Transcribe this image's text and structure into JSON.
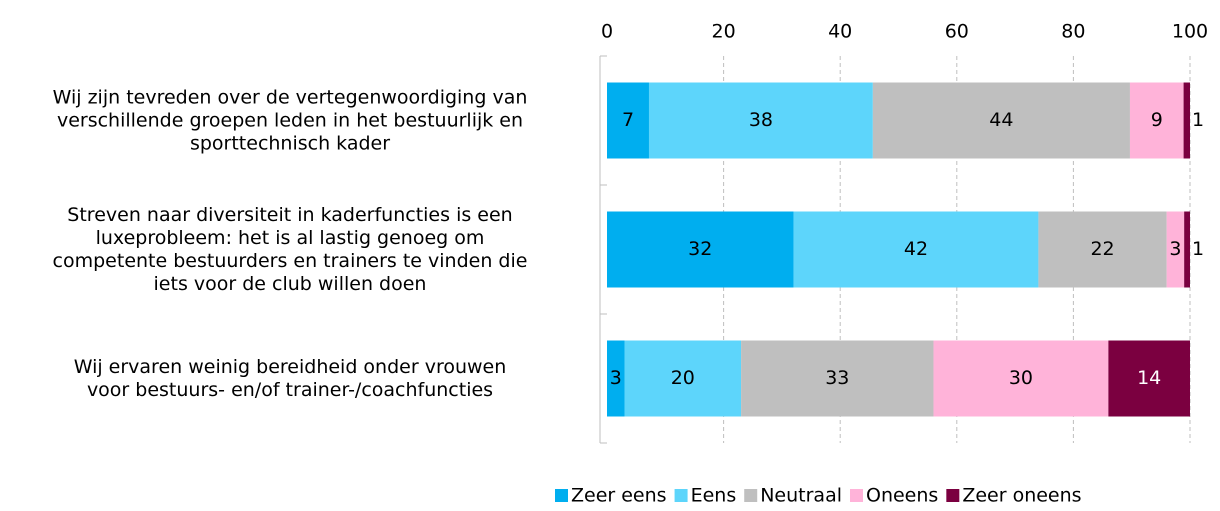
{
  "chart_data": {
    "type": "stacked_bar_horizontal",
    "categories": [
      "Wij zijn tevreden over de vertegenwoordiging van\nverschillende groepen leden in het bestuurlijk en\nsporttechnisch kader",
      "Streven naar diversiteit in kaderfuncties is een\nluxeprobleem: het is al lastig genoeg om\ncompetente bestuurders en trainers te vinden die\niets voor de club willen doen",
      "Wij ervaren weinig bereidheid onder vrouwen\nvoor bestuurs- en/of trainer-/coachfuncties"
    ],
    "series": [
      {
        "name": "Zeer eens",
        "color": "#00aeef",
        "values": [
          7.2,
          32,
          3
        ],
        "value_labels": [
          "7",
          "32",
          "3"
        ]
      },
      {
        "name": "Eens",
        "color": "#5dd5fb",
        "values": [
          38.4,
          42,
          20
        ],
        "value_labels": [
          "38",
          "42",
          "20"
        ]
      },
      {
        "name": "Neutraal",
        "color": "#bfbfbf",
        "values": [
          44.1,
          22,
          33
        ],
        "value_labels": [
          "44",
          "22",
          "33"
        ]
      },
      {
        "name": "Oneens",
        "color": "#ffb3d9",
        "values": [
          9.2,
          3,
          30
        ],
        "value_labels": [
          "9",
          "3",
          "30"
        ]
      },
      {
        "name": "Zeer oneens",
        "color": "#7b0040",
        "values": [
          1.1,
          1,
          14
        ],
        "value_labels": [
          "1",
          "1",
          "14"
        ]
      }
    ],
    "xlim": [
      0,
      100
    ],
    "xticks": [
      0,
      20,
      40,
      60,
      80,
      100
    ],
    "grid": true,
    "legend": "bottom"
  }
}
